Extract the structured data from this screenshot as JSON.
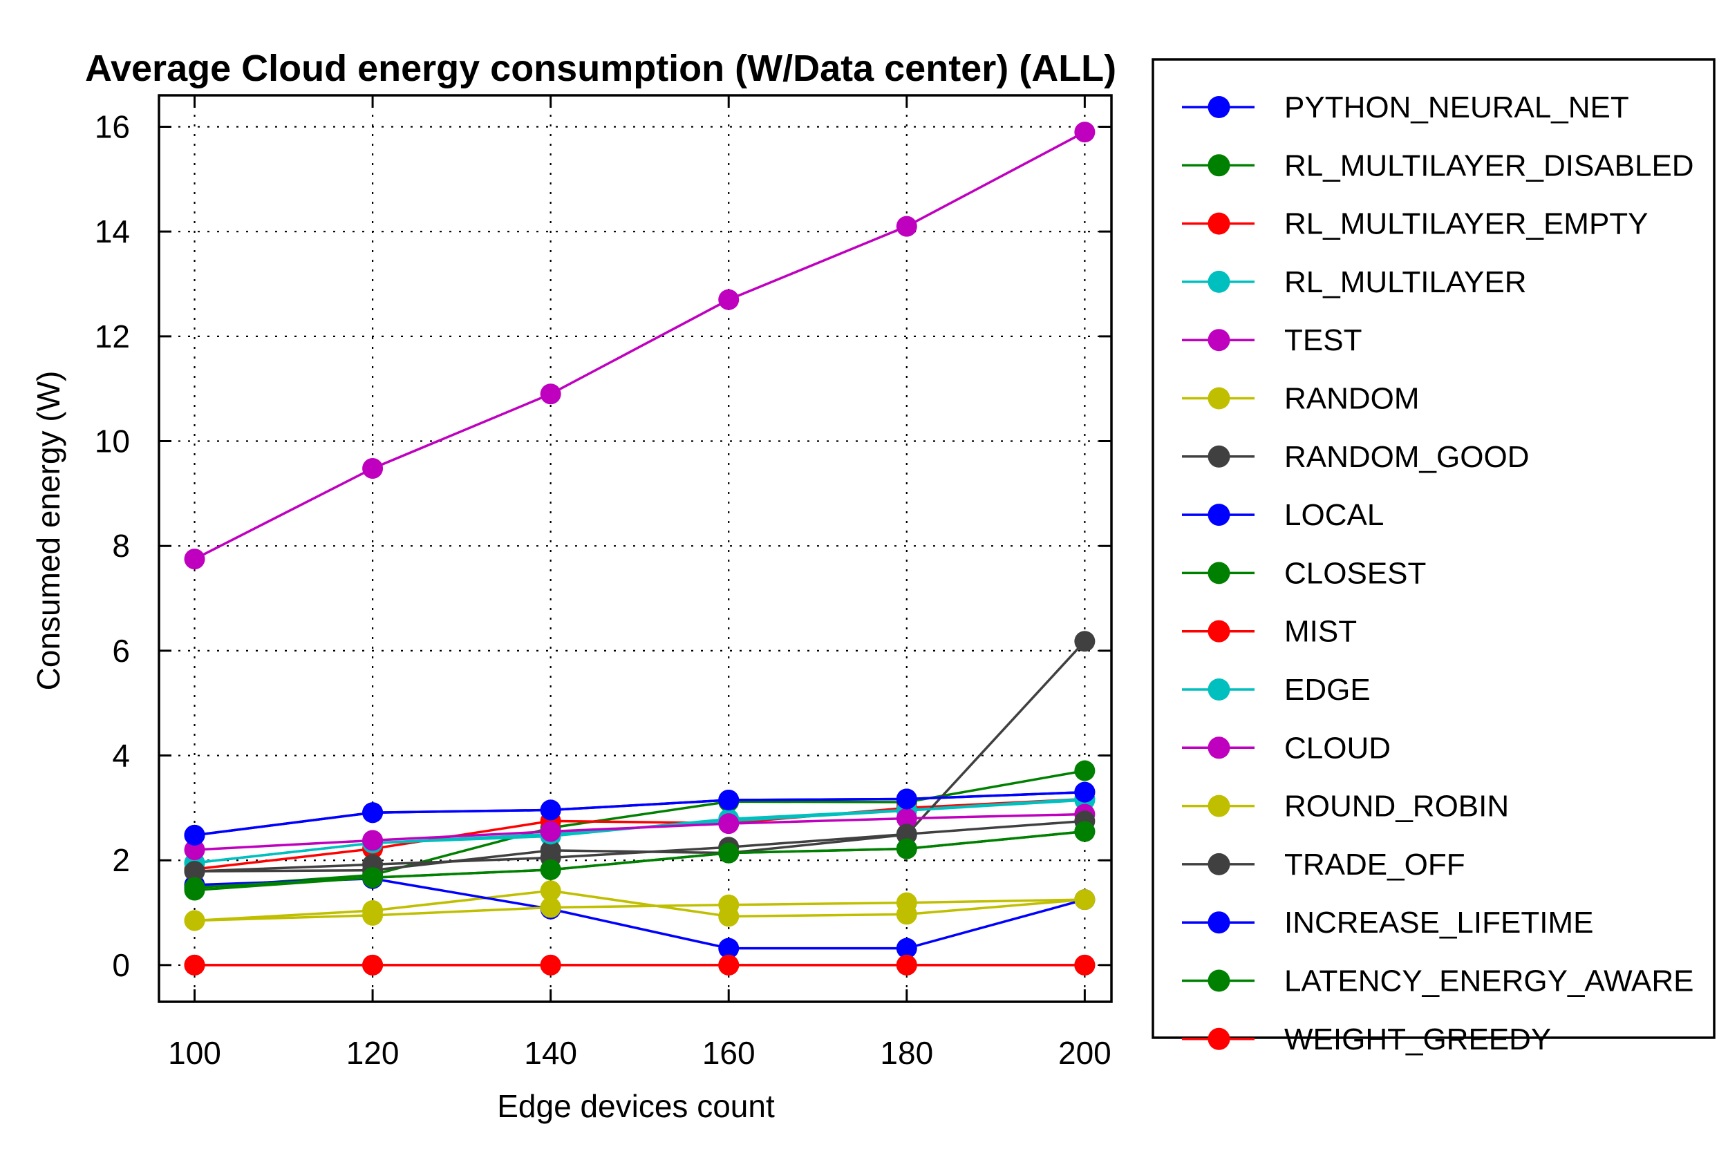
{
  "chart_data": {
    "type": "line",
    "title": "Average Cloud energy consumption (W/Data center) (ALL)",
    "xlabel": "Edge devices count",
    "ylabel": "Consumed energy (W)",
    "x": [
      100,
      120,
      140,
      160,
      180,
      200
    ],
    "xlim": [
      96,
      203
    ],
    "ylim": [
      -0.7,
      16.6
    ],
    "yticks": [
      0,
      2,
      4,
      6,
      8,
      10,
      12,
      14,
      16
    ],
    "grid": true,
    "legend_position": "outside-right",
    "series": [
      {
        "name": "PYTHON_NEURAL_NET",
        "color": "#0000ff",
        "values": [
          2.48,
          2.91,
          2.96,
          3.15,
          3.17,
          3.3
        ]
      },
      {
        "name": "RL_MULTILAYER_DISABLED",
        "color": "#008000",
        "values": [
          1.48,
          1.72,
          2.62,
          3.12,
          3.11,
          3.71
        ]
      },
      {
        "name": "RL_MULTILAYER_EMPTY",
        "color": "#ff0000",
        "values": [
          1.83,
          2.22,
          2.75,
          2.71,
          3.0,
          3.17
        ]
      },
      {
        "name": "RL_MULTILAYER",
        "color": "#00bfbf",
        "values": [
          1.95,
          2.33,
          2.46,
          2.79,
          2.96,
          3.17
        ]
      },
      {
        "name": "TEST",
        "color": "#bf00bf",
        "values": [
          7.75,
          9.48,
          10.9,
          12.7,
          14.1,
          15.9
        ]
      },
      {
        "name": "RANDOM",
        "color": "#bfbf00",
        "values": [
          0.85,
          1.04,
          1.42,
          0.93,
          0.97,
          1.25
        ]
      },
      {
        "name": "RANDOM_GOOD",
        "color": "#404040",
        "values": [
          1.79,
          1.81,
          2.19,
          2.14,
          2.49,
          6.18
        ]
      },
      {
        "name": "LOCAL",
        "color": "#0000ff",
        "values": [
          1.53,
          1.65,
          1.07,
          0.32,
          0.32,
          1.25
        ]
      },
      {
        "name": "CLOSEST",
        "color": "#008000",
        "values": [
          1.43,
          1.67,
          1.82,
          2.14,
          2.22,
          2.55
        ]
      },
      {
        "name": "MIST",
        "color": "#ff0000",
        "values": [
          0.0,
          0.0,
          0.0,
          0.0,
          0.0,
          0.0
        ]
      },
      {
        "name": "EDGE",
        "color": "#00bfbf",
        "values": [
          1.95,
          2.33,
          2.5,
          2.75,
          2.95,
          3.15
        ]
      },
      {
        "name": "CLOUD",
        "color": "#bf00bf",
        "values": [
          2.2,
          2.38,
          2.55,
          2.7,
          2.8,
          2.88
        ]
      },
      {
        "name": "ROUND_ROBIN",
        "color": "#bfbf00",
        "values": [
          0.85,
          0.95,
          1.1,
          1.15,
          1.19,
          1.25
        ]
      },
      {
        "name": "TRADE_OFF",
        "color": "#404040",
        "values": [
          1.79,
          1.92,
          2.05,
          2.25,
          2.5,
          2.75
        ]
      },
      {
        "name": "INCREASE_LIFETIME",
        "color": "#0000ff",
        "values": [
          2.48,
          2.91,
          2.96,
          3.15,
          3.17,
          3.3
        ]
      },
      {
        "name": "LATENCY_ENERGY_AWARE",
        "color": "#008000",
        "values": [
          1.48,
          1.67,
          1.82,
          2.14,
          2.22,
          2.55
        ]
      },
      {
        "name": "WEIGHT_GREEDY",
        "color": "#ff0000",
        "values": [
          0.0,
          0.0,
          0.0,
          0.0,
          0.0,
          0.0
        ]
      }
    ]
  }
}
